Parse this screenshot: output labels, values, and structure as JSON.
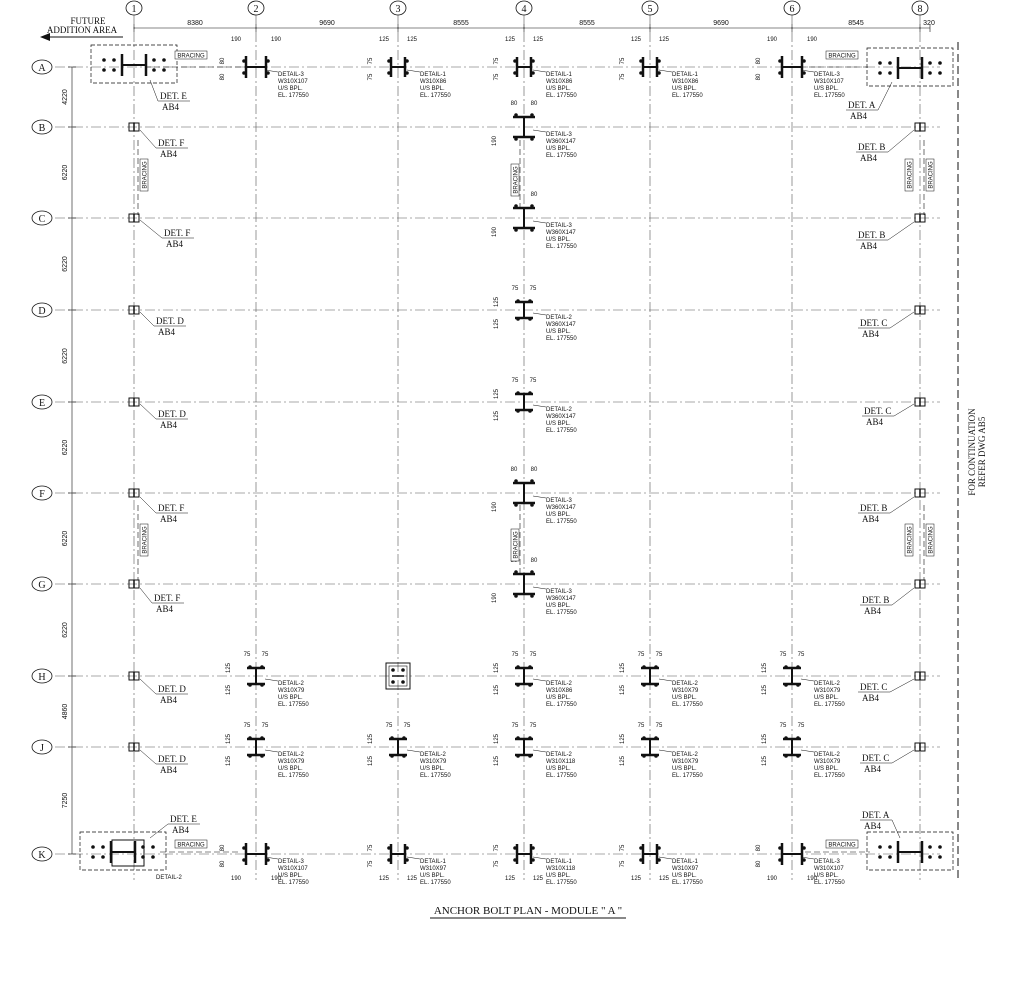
{
  "title": "ANCHOR BOLT PLAN - MODULE \" A     \"",
  "future_note": [
    "FUTURE",
    "ADDITION AREA"
  ],
  "continuation_note": [
    "FOR CONTINUATION",
    "REFER DWG AB5"
  ],
  "grid_cols": [
    "1",
    "2",
    "3",
    "4",
    "5",
    "6",
    "8"
  ],
  "grid_rows": [
    "A",
    "B",
    "C",
    "D",
    "E",
    "F",
    "G",
    "H",
    "J",
    "K"
  ],
  "col_spacing": [
    "8380",
    "9690",
    "8555",
    "8555",
    "9690",
    "8545",
    "320"
  ],
  "row_spacing": [
    "4220",
    "6220",
    "6220",
    "6220",
    "6220",
    "6220",
    "6220",
    "4860",
    "7250"
  ],
  "bracing_label": "BRACING",
  "el_text": "EL. 177550",
  "ubpl": "U/S BPL.",
  "ref": "AB4",
  "details": [
    {
      "id": "a2",
      "d": "DETAIL-3",
      "s": "W310X107"
    },
    {
      "id": "a3",
      "d": "DETAIL-1",
      "s": "W310X86"
    },
    {
      "id": "a4",
      "d": "DETAIL-1",
      "s": "W310X86"
    },
    {
      "id": "a5",
      "d": "DETAIL-1",
      "s": "W310X86"
    },
    {
      "id": "a6",
      "d": "DETAIL-3",
      "s": "W310X107"
    },
    {
      "id": "b4",
      "d": "DETAIL-3",
      "s": "W360X147"
    },
    {
      "id": "c4",
      "d": "DETAIL-3",
      "s": "W360X147"
    },
    {
      "id": "d4",
      "d": "DETAIL-2",
      "s": "W360X147"
    },
    {
      "id": "e4",
      "d": "DETAIL-2",
      "s": "W360X147"
    },
    {
      "id": "f4",
      "d": "DETAIL-3",
      "s": "W360X147"
    },
    {
      "id": "g4",
      "d": "DETAIL-3",
      "s": "W360X147"
    },
    {
      "id": "h2",
      "d": "DETAIL-2",
      "s": "W310X79"
    },
    {
      "id": "h4",
      "d": "DETAIL-2",
      "s": "W310X86"
    },
    {
      "id": "h5",
      "d": "DETAIL-2",
      "s": "W310X79"
    },
    {
      "id": "h6",
      "d": "DETAIL-2",
      "s": "W310X79"
    },
    {
      "id": "j2",
      "d": "DETAIL-2",
      "s": "W310X79"
    },
    {
      "id": "j3",
      "d": "DETAIL-2",
      "s": "W310X79"
    },
    {
      "id": "j4",
      "d": "DETAIL-2",
      "s": "W310X118"
    },
    {
      "id": "j5",
      "d": "DETAIL-2",
      "s": "W310X79"
    },
    {
      "id": "j6",
      "d": "DETAIL-2",
      "s": "W310X79"
    },
    {
      "id": "k2",
      "d": "DETAIL-3",
      "s": "W310X107"
    },
    {
      "id": "k3",
      "d": "DETAIL-1",
      "s": "W310X97"
    },
    {
      "id": "k4",
      "d": "DETAIL-1",
      "s": "W310X118"
    },
    {
      "id": "k5",
      "d": "DETAIL-1",
      "s": "W310X97"
    },
    {
      "id": "k6",
      "d": "DETAIL-3",
      "s": "W310X107"
    }
  ],
  "dets": [
    {
      "id": "A1",
      "t": "DET. E"
    },
    {
      "id": "A8",
      "t": "DET. A"
    },
    {
      "id": "B1",
      "t": "DET. F"
    },
    {
      "id": "B8",
      "t": "DET. B"
    },
    {
      "id": "C1",
      "t": "DET. F"
    },
    {
      "id": "C8",
      "t": "DET. B"
    },
    {
      "id": "D1",
      "t": "DET. D"
    },
    {
      "id": "D8",
      "t": "DET. C"
    },
    {
      "id": "E1",
      "t": "DET. D"
    },
    {
      "id": "E8",
      "t": "DET. C"
    },
    {
      "id": "F1",
      "t": "DET. F"
    },
    {
      "id": "F8",
      "t": "DET. B"
    },
    {
      "id": "G1",
      "t": "DET. F"
    },
    {
      "id": "G8",
      "t": "DET. B"
    },
    {
      "id": "H1",
      "t": "DET. D"
    },
    {
      "id": "H8",
      "t": "DET. C"
    },
    {
      "id": "J1",
      "t": "DET. D"
    },
    {
      "id": "J8",
      "t": "DET. C"
    },
    {
      "id": "K1",
      "t": "DET. E"
    },
    {
      "id": "K8",
      "t": "DET. A"
    }
  ],
  "k1_detail": "DETAIL-2",
  "dims": {
    "d190": "190",
    "d125": "125",
    "d75": "75",
    "d80": "80"
  }
}
